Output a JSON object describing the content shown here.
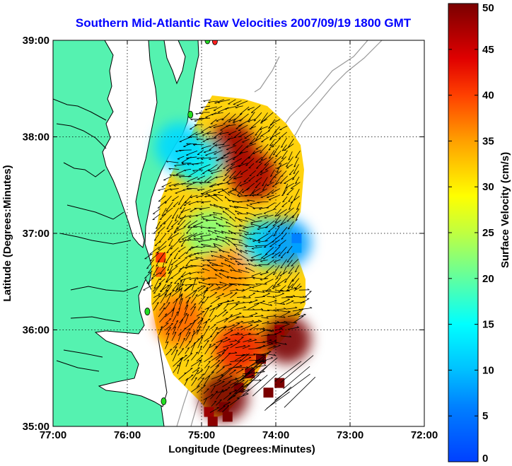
{
  "title": "Southern Mid-Atlantic Raw Velocities 2007/09/19 1800 GMT",
  "axes": {
    "xlabel": "Longitude (Degrees:Minutes)",
    "ylabel": "Latitude (Degrees:Minutes)",
    "xlim": [
      -77,
      -72
    ],
    "ylim": [
      35,
      39
    ],
    "xticks": [
      {
        "value": -77,
        "label": "77:00"
      },
      {
        "value": -76,
        "label": "76:00"
      },
      {
        "value": -75,
        "label": "75:00"
      },
      {
        "value": -74,
        "label": "74:00"
      },
      {
        "value": -73,
        "label": "73:00"
      },
      {
        "value": -72,
        "label": "72:00"
      }
    ],
    "yticks": [
      {
        "value": 35,
        "label": "35:00"
      },
      {
        "value": 36,
        "label": "36:00"
      },
      {
        "value": 37,
        "label": "37:00"
      },
      {
        "value": 38,
        "label": "38:00"
      },
      {
        "value": 39,
        "label": "39:00"
      }
    ],
    "grid": "dotted"
  },
  "colorbar": {
    "label": "Surface Velocity (cm/s)",
    "min": 0,
    "max": 50,
    "ticks": [
      {
        "value": 0,
        "label": "0"
      },
      {
        "value": 5,
        "label": "5"
      },
      {
        "value": 10,
        "label": "10"
      },
      {
        "value": 15,
        "label": "15"
      },
      {
        "value": 20,
        "label": "20"
      },
      {
        "value": 25,
        "label": "25"
      },
      {
        "value": 30,
        "label": "30"
      },
      {
        "value": 35,
        "label": "35"
      },
      {
        "value": 40,
        "label": "40"
      },
      {
        "value": 45,
        "label": "45"
      },
      {
        "value": 50,
        "label": "50"
      }
    ],
    "colormap": "jet"
  },
  "colors": {
    "land": "#55f2b0",
    "coastline": "#000000",
    "bathymetry": "#9a9a9a",
    "station": "#22dd22",
    "station_alert": "#ff2020"
  },
  "stations": [
    {
      "lon": -74.92,
      "lat": 39.0,
      "status": "ok"
    },
    {
      "lon": -74.82,
      "lat": 38.99,
      "status": "alert"
    },
    {
      "lon": -75.15,
      "lat": 38.23,
      "status": "ok"
    },
    {
      "lon": -75.73,
      "lat": 36.19,
      "status": "ok"
    },
    {
      "lon": -75.51,
      "lat": 35.26,
      "status": "ok"
    }
  ],
  "chart_data": {
    "type": "heatmap",
    "title": "Southern Mid-Atlantic Raw Velocities 2007/09/19 1800 GMT",
    "xlabel": "Longitude (Degrees:Minutes)",
    "ylabel": "Latitude (Degrees:Minutes)",
    "colorbar_label": "Surface Velocity (cm/s)",
    "value_range": [
      0,
      50
    ],
    "unit": "cm/s",
    "lon_extent": [
      -75.7,
      -73.6
    ],
    "lat_extent": [
      35.1,
      38.4
    ],
    "features": [
      {
        "lon": -74.6,
        "lat": 37.9,
        "speed": 48
      },
      {
        "lon": -74.3,
        "lat": 37.6,
        "speed": 47
      },
      {
        "lon": -74.9,
        "lat": 37.0,
        "speed": 22
      },
      {
        "lon": -74.15,
        "lat": 36.9,
        "speed": 12
      },
      {
        "lon": -73.85,
        "lat": 36.9,
        "speed": 8
      },
      {
        "lon": -74.7,
        "lat": 36.6,
        "speed": 36
      },
      {
        "lon": -75.3,
        "lat": 36.1,
        "speed": 38
      },
      {
        "lon": -74.5,
        "lat": 35.8,
        "speed": 42
      },
      {
        "lon": -74.7,
        "lat": 35.3,
        "speed": 50
      },
      {
        "lon": -75.05,
        "lat": 37.75,
        "speed": 14
      },
      {
        "lon": -75.3,
        "lat": 37.9,
        "speed": 12
      },
      {
        "lon": -73.85,
        "lat": 35.9,
        "speed": 50
      }
    ]
  }
}
